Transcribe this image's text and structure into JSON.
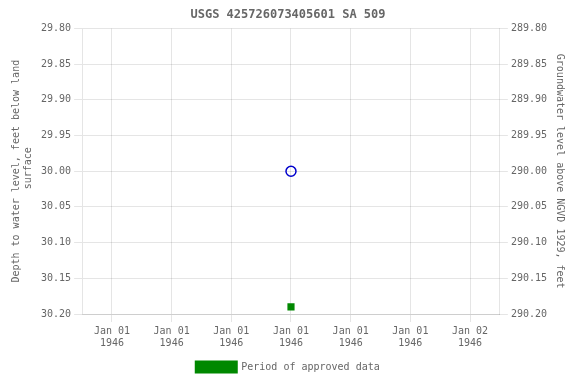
{
  "chart_data": {
    "type": "scatter",
    "title": "USGS 425726073405601 SA 509",
    "categories": [
      "Jan 01\n1946",
      "Jan 01\n1946",
      "Jan 01\n1946",
      "Jan 01\n1946",
      "Jan 01\n1946",
      "Jan 01\n1946",
      "Jan 02\n1946"
    ],
    "series": [
      {
        "color": "#0000cc",
        "marker": "circle-open",
        "line_style": "none",
        "values": [
          null,
          null,
          null,
          30.0,
          null,
          null,
          null
        ]
      },
      {
        "name": "Period of approved data",
        "color": "#008800",
        "marker": "square",
        "line_style": "none",
        "values": [
          null,
          null,
          null,
          30.19,
          null,
          null,
          null
        ]
      }
    ],
    "ylabel": "Depth to water level, feet below land\n surface",
    "y2label": "Groundwater level above NGVD 1929, feet",
    "ylim": [
      30.2,
      29.8
    ],
    "yticks": [
      {
        "value": 29.8,
        "label": "29.80"
      },
      {
        "value": 29.85,
        "label": "29.85"
      },
      {
        "value": 29.9,
        "label": "29.90"
      },
      {
        "value": 29.95,
        "label": "29.95"
      },
      {
        "value": 30.0,
        "label": "30.00"
      },
      {
        "value": 30.05,
        "label": "30.05"
      },
      {
        "value": 30.1,
        "label": "30.10"
      },
      {
        "value": 30.15,
        "label": "30.15"
      },
      {
        "value": 30.2,
        "label": "30.20"
      }
    ],
    "y2lim": [
      290.2,
      289.8
    ],
    "y2ticks": [
      {
        "value": 290.2,
        "label": "290.20"
      },
      {
        "value": 290.15,
        "label": "290.15"
      },
      {
        "value": 290.1,
        "label": "290.10"
      },
      {
        "value": 290.05,
        "label": "290.05"
      },
      {
        "value": 290.0,
        "label": "290.00"
      },
      {
        "value": 289.95,
        "label": "289.95"
      },
      {
        "value": 289.9,
        "label": "289.90"
      },
      {
        "value": 289.85,
        "label": "289.85"
      },
      {
        "value": 289.8,
        "label": "289.80"
      }
    ],
    "grid": true,
    "legend": "bottom"
  }
}
